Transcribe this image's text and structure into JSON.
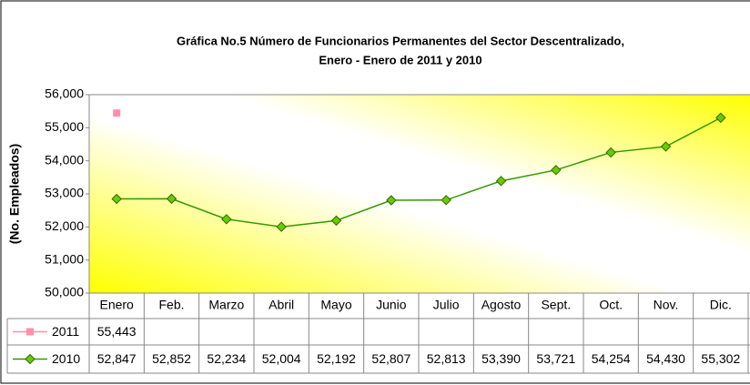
{
  "chart_data": {
    "type": "line",
    "title": "Gráfica No.5 Número de Funcionarios Permanentes del Sector Descentralizado,",
    "subtitle": "Enero - Enero de 2011 y 2010",
    "y_label": "(No. Empleados)",
    "categories": [
      "Enero",
      "Feb.",
      "Marzo",
      "Abril",
      "Mayo",
      "Junio",
      "Julio",
      "Agosto",
      "Sept.",
      "Oct.",
      "Nov.",
      "Dic."
    ],
    "series": [
      {
        "name": "2011",
        "color": "#ff8fa8",
        "line_color": "#ff8fa8",
        "values": [
          55443,
          null,
          null,
          null,
          null,
          null,
          null,
          null,
          null,
          null,
          null,
          null
        ],
        "value_labels": [
          "55,443",
          null,
          null,
          null,
          null,
          null,
          null,
          null,
          null,
          null,
          null,
          null
        ]
      },
      {
        "name": "2010",
        "color": "#66cc00",
        "line_color": "#339900",
        "values": [
          52847,
          52852,
          52234,
          52004,
          52192,
          52807,
          52813,
          53390,
          53721,
          54254,
          54430,
          55302
        ],
        "value_labels": [
          "52,847",
          "52,852",
          "52,234",
          "52,004",
          "52,192",
          "52,807",
          "52,813",
          "53,390",
          "53,721",
          "54,254",
          "54,430",
          "55,302"
        ]
      }
    ],
    "ylim": [
      50000,
      56000
    ],
    "yticks": [
      {
        "value": 50000,
        "label": "50,000"
      },
      {
        "value": 51000,
        "label": "51,000"
      },
      {
        "value": 52000,
        "label": "52,000"
      },
      {
        "value": 53000,
        "label": "53,000"
      },
      {
        "value": 54000,
        "label": "54,000"
      },
      {
        "value": 55000,
        "label": "55,000"
      },
      {
        "value": 56000,
        "label": "56,000"
      }
    ],
    "grid": false
  }
}
